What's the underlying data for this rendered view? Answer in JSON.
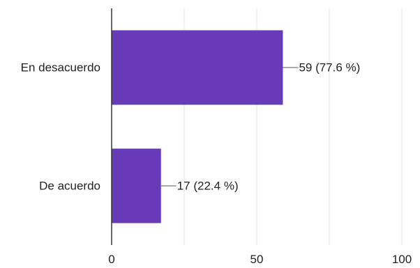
{
  "chart_data": {
    "type": "bar",
    "orientation": "horizontal",
    "title": "",
    "xlabel": "",
    "ylabel": "",
    "categories": [
      "En desacuerdo",
      "De acuerdo"
    ],
    "values": [
      59,
      17
    ],
    "value_labels": [
      "59 (77.6 %)",
      "17 (22.4 %)"
    ],
    "xlim": [
      0,
      100
    ],
    "xticks": [
      0,
      50,
      100
    ],
    "xtick_labels": [
      "0",
      "50",
      "100"
    ],
    "grid": true,
    "legend": "none",
    "colors": {
      "bar": "#673AB7",
      "grid": "#e6e6e6",
      "axis": "#333333",
      "text": "#222222"
    }
  }
}
